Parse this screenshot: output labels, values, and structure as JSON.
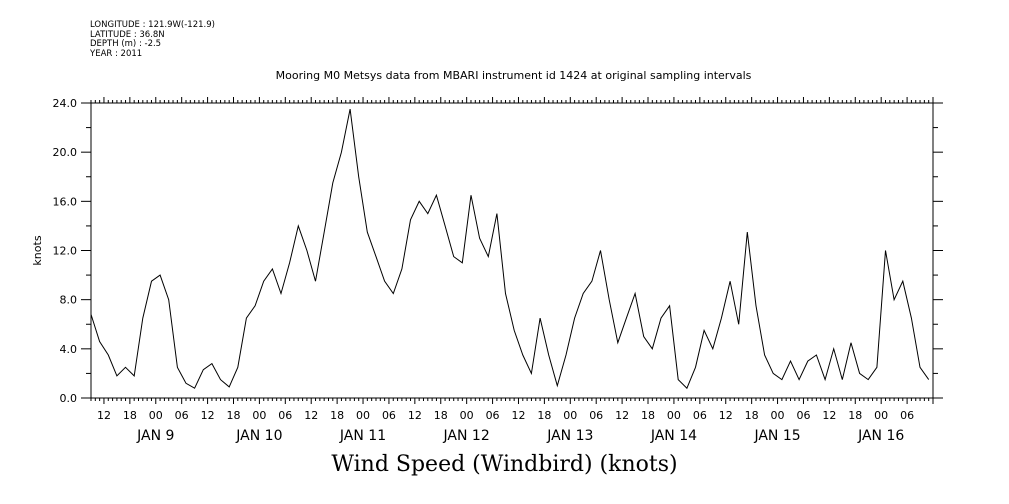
{
  "meta": {
    "longitude": "LONGITUDE : 121.9W(-121.9)",
    "latitude": "LATITUDE : 36.8N",
    "depth": "DEPTH (m) : -2.5",
    "year": "YEAR : 2011"
  },
  "chart_data": {
    "type": "line",
    "title": "Mooring M0 Metsys data from MBARI instrument id 1424 at original sampling intervals",
    "xlabel": "Wind Speed (Windbird) (knots)",
    "ylabel": "knots",
    "ylim": [
      0,
      24
    ],
    "xlim": [
      "2011-01-08T09:00",
      "2011-01-16T12:00"
    ],
    "grid": false,
    "y_ticks": [
      "0.0",
      "4.0",
      "8.0",
      "12.0",
      "16.0",
      "20.0",
      "24.0"
    ],
    "x_hour_ticks": [
      {
        "t": "2011-01-08T12:00",
        "label": "12"
      },
      {
        "t": "2011-01-08T18:00",
        "label": "18"
      },
      {
        "t": "2011-01-09T00:00",
        "label": "00"
      },
      {
        "t": "2011-01-09T06:00",
        "label": "06"
      },
      {
        "t": "2011-01-09T12:00",
        "label": "12"
      },
      {
        "t": "2011-01-09T18:00",
        "label": "18"
      },
      {
        "t": "2011-01-10T00:00",
        "label": "00"
      },
      {
        "t": "2011-01-10T06:00",
        "label": "06"
      },
      {
        "t": "2011-01-10T12:00",
        "label": "12"
      },
      {
        "t": "2011-01-10T18:00",
        "label": "18"
      },
      {
        "t": "2011-01-11T00:00",
        "label": "00"
      },
      {
        "t": "2011-01-11T06:00",
        "label": "06"
      },
      {
        "t": "2011-01-11T12:00",
        "label": "12"
      },
      {
        "t": "2011-01-11T18:00",
        "label": "18"
      },
      {
        "t": "2011-01-12T00:00",
        "label": "00"
      },
      {
        "t": "2011-01-12T06:00",
        "label": "06"
      },
      {
        "t": "2011-01-12T12:00",
        "label": "12"
      },
      {
        "t": "2011-01-12T18:00",
        "label": "18"
      },
      {
        "t": "2011-01-13T00:00",
        "label": "00"
      },
      {
        "t": "2011-01-13T06:00",
        "label": "06"
      },
      {
        "t": "2011-01-13T12:00",
        "label": "12"
      },
      {
        "t": "2011-01-13T18:00",
        "label": "18"
      },
      {
        "t": "2011-01-14T00:00",
        "label": "00"
      },
      {
        "t": "2011-01-14T06:00",
        "label": "06"
      },
      {
        "t": "2011-01-14T12:00",
        "label": "12"
      },
      {
        "t": "2011-01-14T18:00",
        "label": "18"
      },
      {
        "t": "2011-01-15T00:00",
        "label": "00"
      },
      {
        "t": "2011-01-15T06:00",
        "label": "06"
      },
      {
        "t": "2011-01-15T12:00",
        "label": "12"
      },
      {
        "t": "2011-01-15T18:00",
        "label": "18"
      },
      {
        "t": "2011-01-16T00:00",
        "label": "00"
      },
      {
        "t": "2011-01-16T06:00",
        "label": "06"
      }
    ],
    "x_day_labels": [
      {
        "t": "2011-01-09T00:00",
        "label": "JAN  9"
      },
      {
        "t": "2011-01-10T00:00",
        "label": "JAN 10"
      },
      {
        "t": "2011-01-11T00:00",
        "label": "JAN 11"
      },
      {
        "t": "2011-01-12T00:00",
        "label": "JAN 12"
      },
      {
        "t": "2011-01-13T00:00",
        "label": "JAN 13"
      },
      {
        "t": "2011-01-14T00:00",
        "label": "JAN 14"
      },
      {
        "t": "2011-01-15T00:00",
        "label": "JAN 15"
      },
      {
        "t": "2011-01-16T00:00",
        "label": "JAN 16"
      }
    ],
    "series": [
      {
        "color": "#000000",
        "points": [
          [
            "2011-01-08T09:00",
            6.8
          ],
          [
            "2011-01-08T11:00",
            4.6
          ],
          [
            "2011-01-08T13:00",
            3.5
          ],
          [
            "2011-01-08T15:00",
            1.8
          ],
          [
            "2011-01-08T17:00",
            2.5
          ],
          [
            "2011-01-08T19:00",
            1.8
          ],
          [
            "2011-01-08T21:00",
            6.5
          ],
          [
            "2011-01-08T23:00",
            9.5
          ],
          [
            "2011-01-09T01:00",
            10.0
          ],
          [
            "2011-01-09T03:00",
            8.0
          ],
          [
            "2011-01-09T05:00",
            2.5
          ],
          [
            "2011-01-09T07:00",
            1.2
          ],
          [
            "2011-01-09T09:00",
            0.8
          ],
          [
            "2011-01-09T11:00",
            2.3
          ],
          [
            "2011-01-09T13:00",
            2.8
          ],
          [
            "2011-01-09T15:00",
            1.5
          ],
          [
            "2011-01-09T17:00",
            0.9
          ],
          [
            "2011-01-09T19:00",
            2.5
          ],
          [
            "2011-01-09T21:00",
            6.5
          ],
          [
            "2011-01-09T23:00",
            7.5
          ],
          [
            "2011-01-10T01:00",
            9.5
          ],
          [
            "2011-01-10T03:00",
            10.5
          ],
          [
            "2011-01-10T05:00",
            8.5
          ],
          [
            "2011-01-10T07:00",
            11.0
          ],
          [
            "2011-01-10T09:00",
            14.0
          ],
          [
            "2011-01-10T11:00",
            12.0
          ],
          [
            "2011-01-10T13:00",
            9.5
          ],
          [
            "2011-01-10T15:00",
            13.5
          ],
          [
            "2011-01-10T17:00",
            17.5
          ],
          [
            "2011-01-10T19:00",
            20.0
          ],
          [
            "2011-01-10T21:00",
            23.5
          ],
          [
            "2011-01-10T23:00",
            18.0
          ],
          [
            "2011-01-11T01:00",
            13.5
          ],
          [
            "2011-01-11T03:00",
            11.5
          ],
          [
            "2011-01-11T05:00",
            9.5
          ],
          [
            "2011-01-11T07:00",
            8.5
          ],
          [
            "2011-01-11T09:00",
            10.5
          ],
          [
            "2011-01-11T11:00",
            14.5
          ],
          [
            "2011-01-11T13:00",
            16.0
          ],
          [
            "2011-01-11T15:00",
            15.0
          ],
          [
            "2011-01-11T17:00",
            16.5
          ],
          [
            "2011-01-11T19:00",
            14.0
          ],
          [
            "2011-01-11T21:00",
            11.5
          ],
          [
            "2011-01-11T23:00",
            11.0
          ],
          [
            "2011-01-12T01:00",
            16.5
          ],
          [
            "2011-01-12T03:00",
            13.0
          ],
          [
            "2011-01-12T05:00",
            11.5
          ],
          [
            "2011-01-12T07:00",
            15.0
          ],
          [
            "2011-01-12T09:00",
            8.5
          ],
          [
            "2011-01-12T11:00",
            5.5
          ],
          [
            "2011-01-12T13:00",
            3.5
          ],
          [
            "2011-01-12T15:00",
            2.0
          ],
          [
            "2011-01-12T17:00",
            6.5
          ],
          [
            "2011-01-12T19:00",
            3.5
          ],
          [
            "2011-01-12T21:00",
            1.0
          ],
          [
            "2011-01-12T23:00",
            3.5
          ],
          [
            "2011-01-13T01:00",
            6.5
          ],
          [
            "2011-01-13T03:00",
            8.5
          ],
          [
            "2011-01-13T05:00",
            9.5
          ],
          [
            "2011-01-13T07:00",
            12.0
          ],
          [
            "2011-01-13T09:00",
            8.0
          ],
          [
            "2011-01-13T11:00",
            4.5
          ],
          [
            "2011-01-13T13:00",
            6.5
          ],
          [
            "2011-01-13T15:00",
            8.5
          ],
          [
            "2011-01-13T17:00",
            5.0
          ],
          [
            "2011-01-13T19:00",
            4.0
          ],
          [
            "2011-01-13T21:00",
            6.5
          ],
          [
            "2011-01-13T23:00",
            7.5
          ],
          [
            "2011-01-14T01:00",
            1.5
          ],
          [
            "2011-01-14T03:00",
            0.8
          ],
          [
            "2011-01-14T05:00",
            2.5
          ],
          [
            "2011-01-14T07:00",
            5.5
          ],
          [
            "2011-01-14T09:00",
            4.0
          ],
          [
            "2011-01-14T11:00",
            6.5
          ],
          [
            "2011-01-14T13:00",
            9.5
          ],
          [
            "2011-01-14T15:00",
            6.0
          ],
          [
            "2011-01-14T17:00",
            13.5
          ],
          [
            "2011-01-14T19:00",
            7.5
          ],
          [
            "2011-01-14T21:00",
            3.5
          ],
          [
            "2011-01-14T23:00",
            2.0
          ],
          [
            "2011-01-15T01:00",
            1.5
          ],
          [
            "2011-01-15T03:00",
            3.0
          ],
          [
            "2011-01-15T05:00",
            1.5
          ],
          [
            "2011-01-15T07:00",
            3.0
          ],
          [
            "2011-01-15T09:00",
            3.5
          ],
          [
            "2011-01-15T11:00",
            1.5
          ],
          [
            "2011-01-15T13:00",
            4.0
          ],
          [
            "2011-01-15T15:00",
            1.5
          ],
          [
            "2011-01-15T17:00",
            4.5
          ],
          [
            "2011-01-15T19:00",
            2.0
          ],
          [
            "2011-01-15T21:00",
            1.5
          ],
          [
            "2011-01-15T23:00",
            2.5
          ],
          [
            "2011-01-16T01:00",
            12.0
          ],
          [
            "2011-01-16T03:00",
            8.0
          ],
          [
            "2011-01-16T05:00",
            9.5
          ],
          [
            "2011-01-16T07:00",
            6.5
          ],
          [
            "2011-01-16T09:00",
            2.5
          ],
          [
            "2011-01-16T11:00",
            1.5
          ]
        ]
      }
    ]
  }
}
